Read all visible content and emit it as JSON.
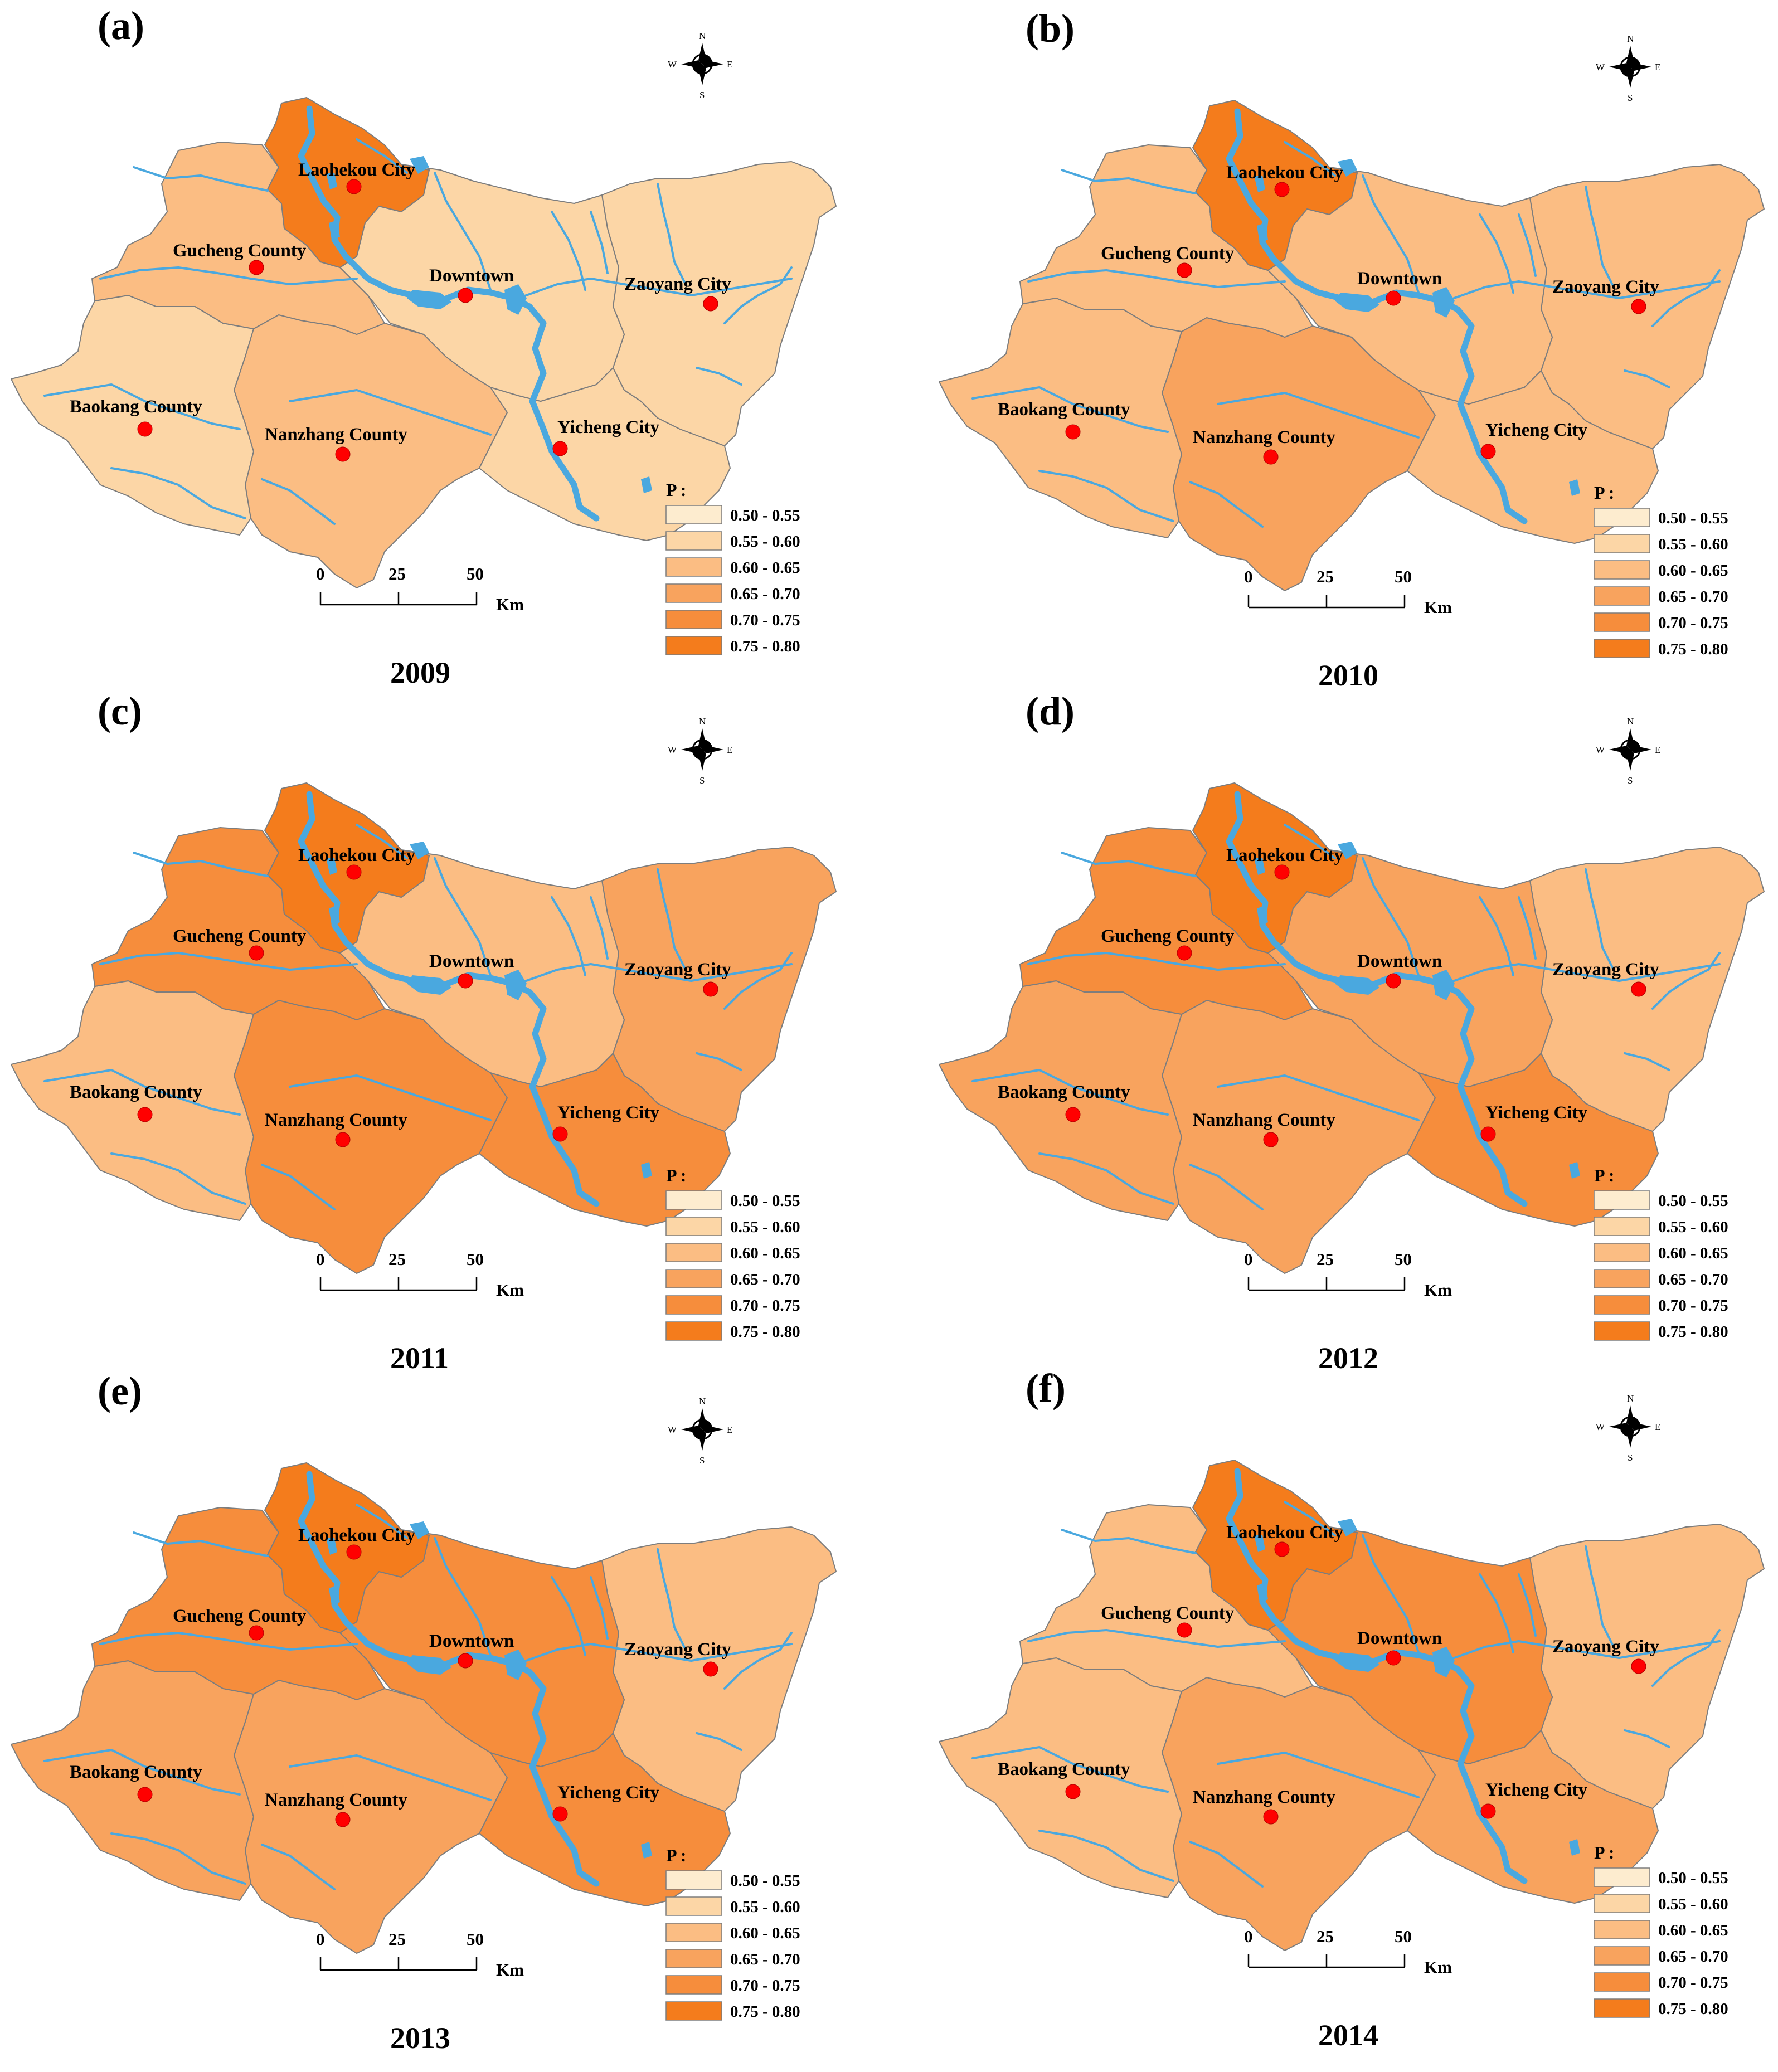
{
  "legend": {
    "title": "P :",
    "classes": [
      {
        "range": "0.50 - 0.55",
        "color": "#fdeccf"
      },
      {
        "range": "0.55 - 0.60",
        "color": "#fcd6a6"
      },
      {
        "range": "0.60 - 0.65",
        "color": "#fbbd83"
      },
      {
        "range": "0.65 - 0.70",
        "color": "#f8a35e"
      },
      {
        "range": "0.70 - 0.75",
        "color": "#f68d3c"
      },
      {
        "range": "0.75 - 0.80",
        "color": "#f47c1c"
      }
    ]
  },
  "scale_bar": {
    "ticks": [
      "0",
      "25",
      "50"
    ],
    "unit": "Km"
  },
  "compass": {
    "n": "N",
    "s": "S",
    "e": "E",
    "w": "W"
  },
  "city_labels": {
    "laohekou": "Laohekou City",
    "gucheng": "Gucheng County",
    "downtown": "Downtown",
    "zaoyang": "Zaoyang City",
    "baokang": "Baokang County",
    "nanzhang": "Nanzhang County",
    "yicheng": "Yicheng City"
  },
  "chart_data": [
    {
      "type": "choropleth",
      "panel": "(a)",
      "year": "2009",
      "classes": {
        "laohekou": "0.75 - 0.80",
        "gucheng": "0.60 - 0.65",
        "downtown": "0.55 - 0.60",
        "zaoyang": "0.55 - 0.60",
        "baokang": "0.55 - 0.60",
        "nanzhang": "0.60 - 0.65",
        "yicheng": "0.55 - 0.60"
      }
    },
    {
      "type": "choropleth",
      "panel": "(b)",
      "year": "2010",
      "classes": {
        "laohekou": "0.75 - 0.80",
        "gucheng": "0.60 - 0.65",
        "downtown": "0.60 - 0.65",
        "zaoyang": "0.60 - 0.65",
        "baokang": "0.60 - 0.65",
        "nanzhang": "0.65 - 0.70",
        "yicheng": "0.60 - 0.65"
      }
    },
    {
      "type": "choropleth",
      "panel": "(c)",
      "year": "2011",
      "classes": {
        "laohekou": "0.75 - 0.80",
        "gucheng": "0.70 - 0.75",
        "downtown": "0.60 - 0.65",
        "zaoyang": "0.65 - 0.70",
        "baokang": "0.60 - 0.65",
        "nanzhang": "0.70 - 0.75",
        "yicheng": "0.70 - 0.75"
      }
    },
    {
      "type": "choropleth",
      "panel": "(d)",
      "year": "2012",
      "classes": {
        "laohekou": "0.75 - 0.80",
        "gucheng": "0.70 - 0.75",
        "downtown": "0.65 - 0.70",
        "zaoyang": "0.60 - 0.65",
        "baokang": "0.65 - 0.70",
        "nanzhang": "0.65 - 0.70",
        "yicheng": "0.70 - 0.75"
      }
    },
    {
      "type": "choropleth",
      "panel": "(e)",
      "year": "2013",
      "classes": {
        "laohekou": "0.75 - 0.80",
        "gucheng": "0.70 - 0.75",
        "downtown": "0.70 - 0.75",
        "zaoyang": "0.60 - 0.65",
        "baokang": "0.65 - 0.70",
        "nanzhang": "0.65 - 0.70",
        "yicheng": "0.70 - 0.75"
      }
    },
    {
      "type": "choropleth",
      "panel": "(f)",
      "year": "2014",
      "classes": {
        "laohekou": "0.75 - 0.80",
        "gucheng": "0.60 - 0.65",
        "downtown": "0.70 - 0.75",
        "zaoyang": "0.60 - 0.65",
        "baokang": "0.60 - 0.65",
        "nanzhang": "0.65 - 0.70",
        "yicheng": "0.65 - 0.70"
      }
    }
  ]
}
